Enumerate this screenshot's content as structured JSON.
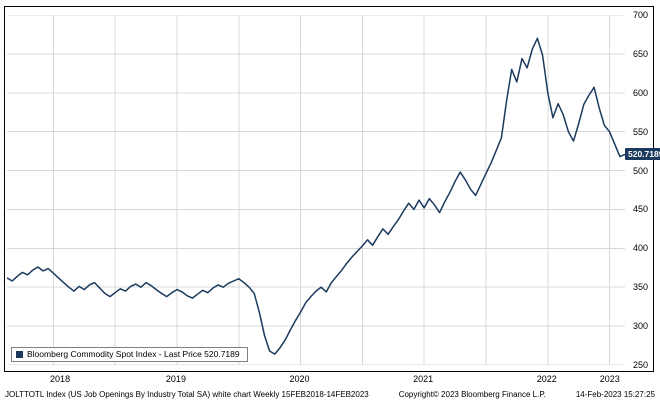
{
  "legend": {
    "label": "Bloomberg Commodity Spot Index - Last Price 520.7189"
  },
  "footer": {
    "left": "JOLTTOTL Index (US Job Openings By Industry Total SA) white chart  Weekly 15FEB2018-14FEB2023",
    "copyright": "Copyright© 2023 Bloomberg Finance L.P.",
    "timestamp": "14-Feb-2023 15:27:25"
  },
  "colors": {
    "line": "#1b3a5e",
    "grid": "#d8d8d8",
    "frame": "#000000",
    "badge_bg": "#1b3a5e",
    "badge_text": "#ffffff"
  },
  "chart_data": {
    "type": "line",
    "title": "Bloomberg Commodity Spot Index - Last Price 520.7189",
    "xlabel": "",
    "ylabel": "",
    "ylim": [
      250,
      700
    ],
    "grid": true,
    "legend_position": "bottom-left",
    "y_ticks": [
      700,
      650,
      600,
      550,
      500,
      450,
      400,
      350,
      300,
      250
    ],
    "x_ticks": [
      {
        "label": "2018",
        "pos": 0.0875
      },
      {
        "label": "2019",
        "pos": 0.275
      },
      {
        "label": "2020",
        "pos": 0.475
      },
      {
        "label": "2021",
        "pos": 0.675
      },
      {
        "label": "2022",
        "pos": 0.875
      },
      {
        "label": "2023",
        "pos": 0.977
      }
    ],
    "x_gridlines": [
      0.075,
      0.175,
      0.275,
      0.375,
      0.475,
      0.575,
      0.675,
      0.775,
      0.875,
      0.975
    ],
    "period": "Weekly",
    "date_range": "15FEB2018-14FEB2023",
    "last_price": 520.7189,
    "last_price_label": "520.7189",
    "series": [
      {
        "name": "Bloomberg Commodity Spot Index",
        "x_description": "evenly spaced semi-monthly samples from 15FEB2018 to 14FEB2023",
        "values": [
          362,
          358,
          364,
          369,
          366,
          372,
          376,
          371,
          374,
          368,
          362,
          356,
          350,
          345,
          351,
          347,
          353,
          356,
          349,
          342,
          338,
          343,
          348,
          345,
          351,
          354,
          350,
          356,
          352,
          347,
          342,
          338,
          343,
          347,
          344,
          339,
          336,
          341,
          346,
          343,
          349,
          353,
          350,
          355,
          358,
          361,
          356,
          350,
          342,
          318,
          288,
          268,
          264,
          272,
          282,
          295,
          307,
          318,
          330,
          338,
          345,
          350,
          344,
          356,
          364,
          372,
          381,
          389,
          396,
          403,
          411,
          404,
          415,
          425,
          418,
          428,
          437,
          448,
          458,
          450,
          462,
          452,
          464,
          456,
          446,
          460,
          472,
          486,
          498,
          488,
          476,
          468,
          482,
          496,
          510,
          526,
          542,
          590,
          630,
          614,
          644,
          632,
          656,
          670,
          648,
          600,
          568,
          586,
          572,
          550,
          538,
          560,
          585,
          597,
          607,
          580,
          558,
          550,
          534,
          518,
          520.72
        ]
      }
    ]
  }
}
